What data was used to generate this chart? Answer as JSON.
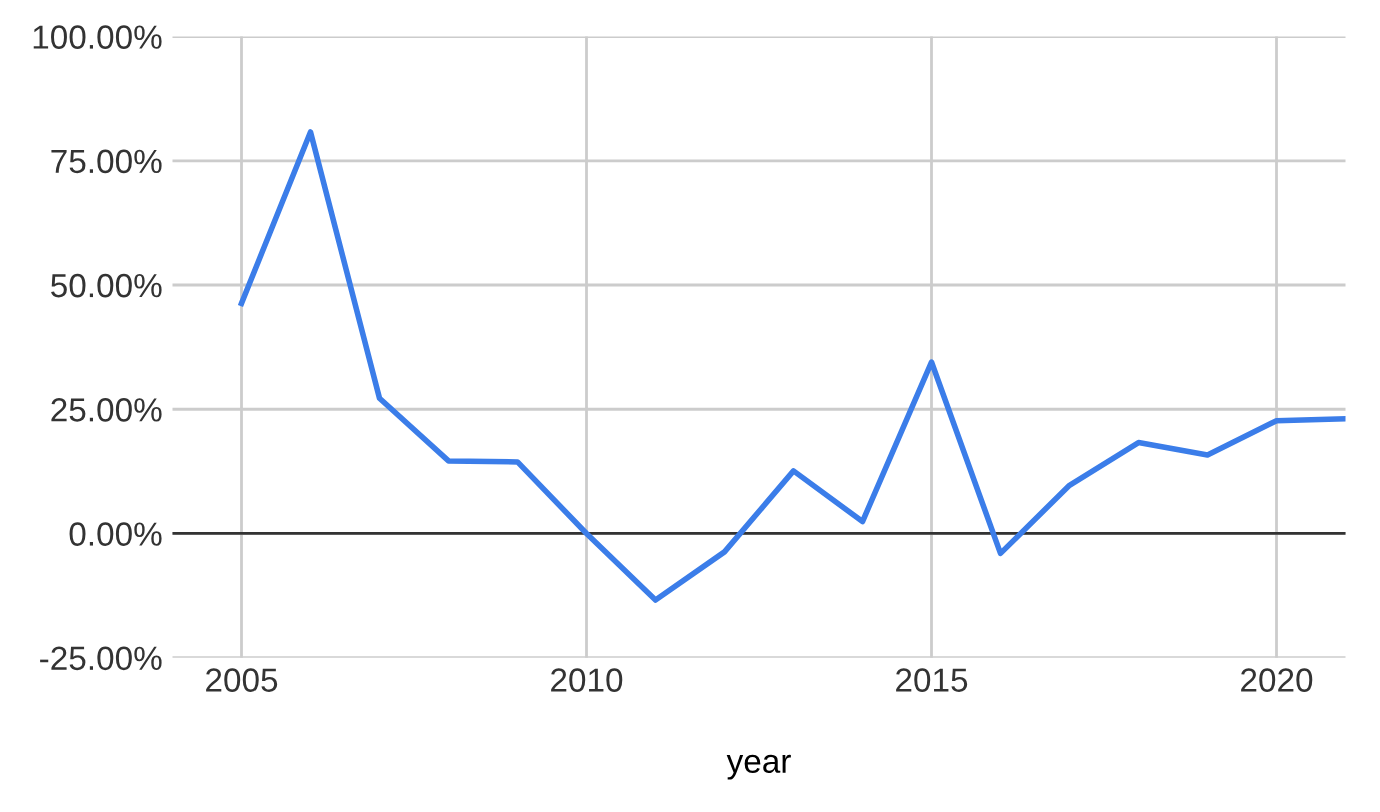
{
  "chart_data": {
    "type": "line",
    "xlabel": "year",
    "x": [
      2005,
      2006,
      2007,
      2008,
      2009,
      2010,
      2011,
      2012,
      2013,
      2014,
      2015,
      2016,
      2017,
      2018,
      2019,
      2020,
      2021
    ],
    "series": [
      {
        "color": "#3b7de9",
        "values": [
          46.3,
          80.8,
          27.2,
          14.6,
          14.4,
          0,
          -13.4,
          -3.7,
          12.6,
          2.4,
          34.5,
          -4,
          9.7,
          18.3,
          15.8,
          22.7,
          23.1
        ]
      }
    ],
    "xlim": [
      2004,
      2021
    ],
    "xticks": [
      2005,
      2010,
      2015,
      2020
    ],
    "ylim": [
      -25,
      100
    ],
    "yticks": [
      {
        "value": -25,
        "label": "-25.00%"
      },
      {
        "value": 0,
        "label": "0.00%"
      },
      {
        "value": 25,
        "label": "25.00%"
      },
      {
        "value": 50,
        "label": "50.00%"
      },
      {
        "value": 75,
        "label": "75.00%"
      },
      {
        "value": 100,
        "label": "100.00%"
      }
    ],
    "ref_lines": [
      {
        "axis": "y",
        "value": 0,
        "color": "#333333"
      }
    ],
    "grid": true,
    "legend": false,
    "marker": "none",
    "line_style": "solid"
  }
}
